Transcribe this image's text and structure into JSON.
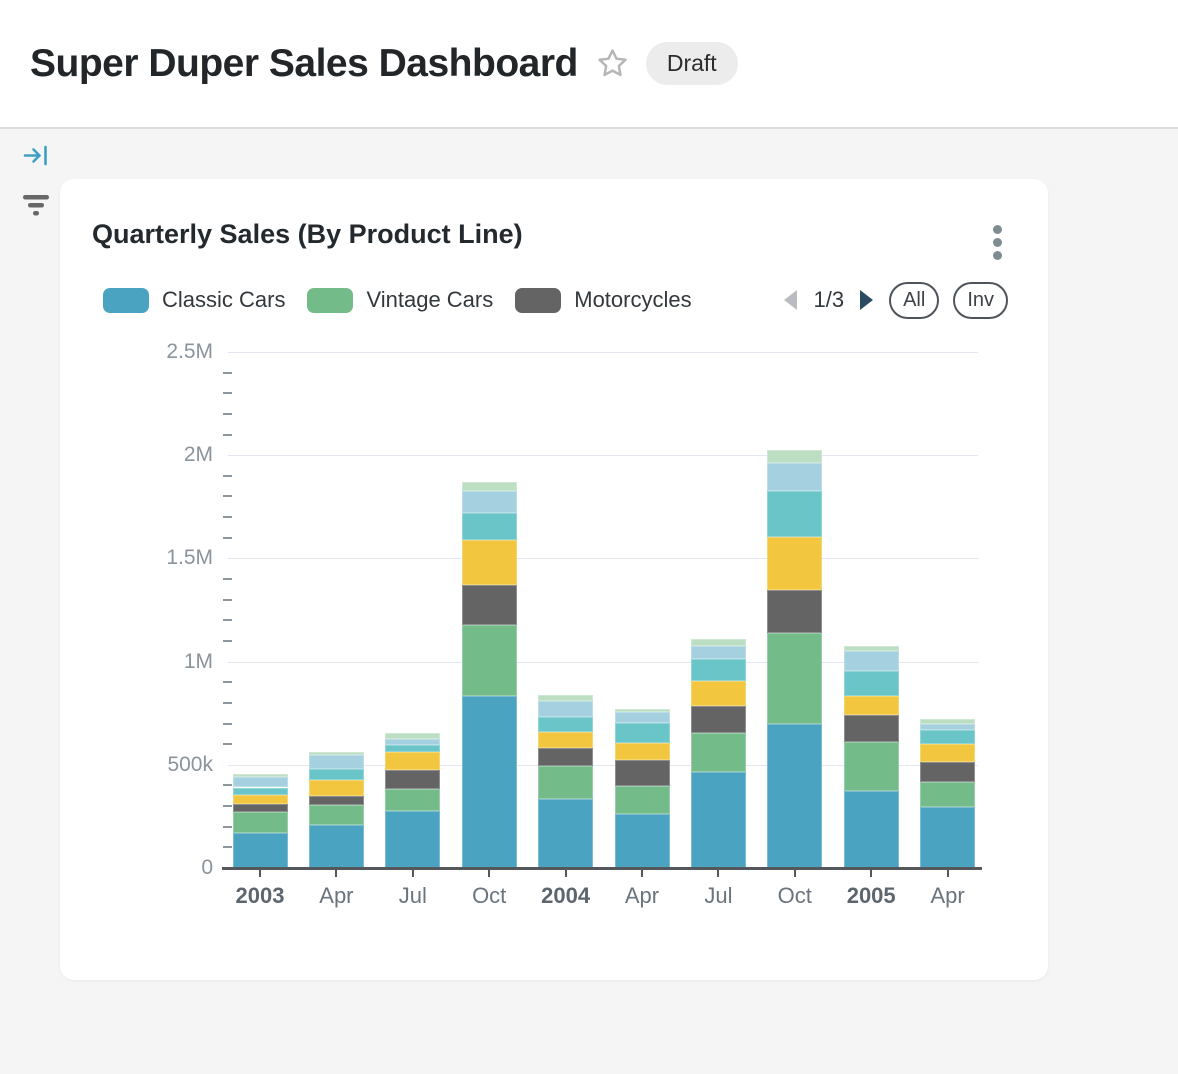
{
  "page": {
    "title": "Super Duper Sales Dashboard",
    "status_badge": "Draft"
  },
  "sidebar": {
    "icons": [
      "collapse-to-right-icon",
      "filter-icon"
    ]
  },
  "card": {
    "title": "Quarterly Sales (By Product Line)",
    "menu_icon": "kebab-menu-icon",
    "legend_note": "legend page 1 of 3",
    "pagination": {
      "current": "1/3",
      "prev_icon": "triangle-left",
      "next_icon": "triangle-right"
    },
    "buttons": {
      "all": "All",
      "invert": "Inv"
    }
  },
  "colors": {
    "accent_blue": "#4aa3c1",
    "header_border": "#dcdcdc",
    "page_background": "#f5f5f6",
    "gridline": "#e4e7f1",
    "axis": "#54585c",
    "axis_text": "#8b939b",
    "pager_next": "#294a61",
    "pager_prev_disabled": "#b9bdc1"
  },
  "chart_data": {
    "type": "bar",
    "stacked": true,
    "title": "Quarterly Sales (By Product Line)",
    "xlabel": "",
    "ylabel": "",
    "ylim": [
      0,
      2500000
    ],
    "y_ticks": [
      "0",
      "500k",
      "1M",
      "1.5M",
      "2M",
      "2.5M"
    ],
    "minor_ticks_per_major": 4,
    "legend_position": "top",
    "grid": "horizontal-major",
    "categories": [
      "2003",
      "Apr",
      "Jul",
      "Oct",
      "2004",
      "Apr",
      "Jul",
      "Oct",
      "2005",
      "Apr"
    ],
    "year_category_indices": [
      0,
      4,
      8
    ],
    "series": [
      {
        "name": "Classic Cars",
        "in_visible_legend": true,
        "color": "#4aa3c1",
        "values": [
          170000,
          207000,
          278000,
          832000,
          335000,
          261000,
          464000,
          699000,
          374000,
          296000
        ]
      },
      {
        "name": "Vintage Cars",
        "in_visible_legend": true,
        "color": "#73bc89",
        "values": [
          103000,
          99000,
          107000,
          345000,
          157000,
          137000,
          188000,
          440000,
          235000,
          121000
        ]
      },
      {
        "name": "Motorcycles",
        "in_visible_legend": true,
        "color": "#646464",
        "values": [
          38000,
          44000,
          91000,
          194000,
          89000,
          125000,
          133000,
          207000,
          133000,
          95000
        ]
      },
      {
        "name": "Unlabeled series (yellow, legend page 2)",
        "in_visible_legend": false,
        "color": "#f2c63e",
        "values": [
          45000,
          74000,
          87000,
          218000,
          76000,
          81000,
          121000,
          259000,
          89000,
          91000
        ]
      },
      {
        "name": "Unlabeled series (teal, legend page 2)",
        "in_visible_legend": false,
        "color": "#69c5c7",
        "values": [
          34000,
          55000,
          31000,
          129000,
          73000,
          97000,
          105000,
          223000,
          125000,
          65000
        ]
      },
      {
        "name": "Unlabeled series (light blue, legend page 2)",
        "in_visible_legend": false,
        "color": "#a4d0e0",
        "values": [
          49000,
          68000,
          32000,
          110000,
          81000,
          55000,
          65000,
          133000,
          94000,
          29000
        ]
      },
      {
        "name": "Unlabeled series (pale green, legend page 3)",
        "in_visible_legend": false,
        "color": "#bcdfc3",
        "values": [
          15000,
          16000,
          28000,
          44000,
          28000,
          13000,
          34000,
          62000,
          28000,
          23000
        ]
      }
    ]
  }
}
